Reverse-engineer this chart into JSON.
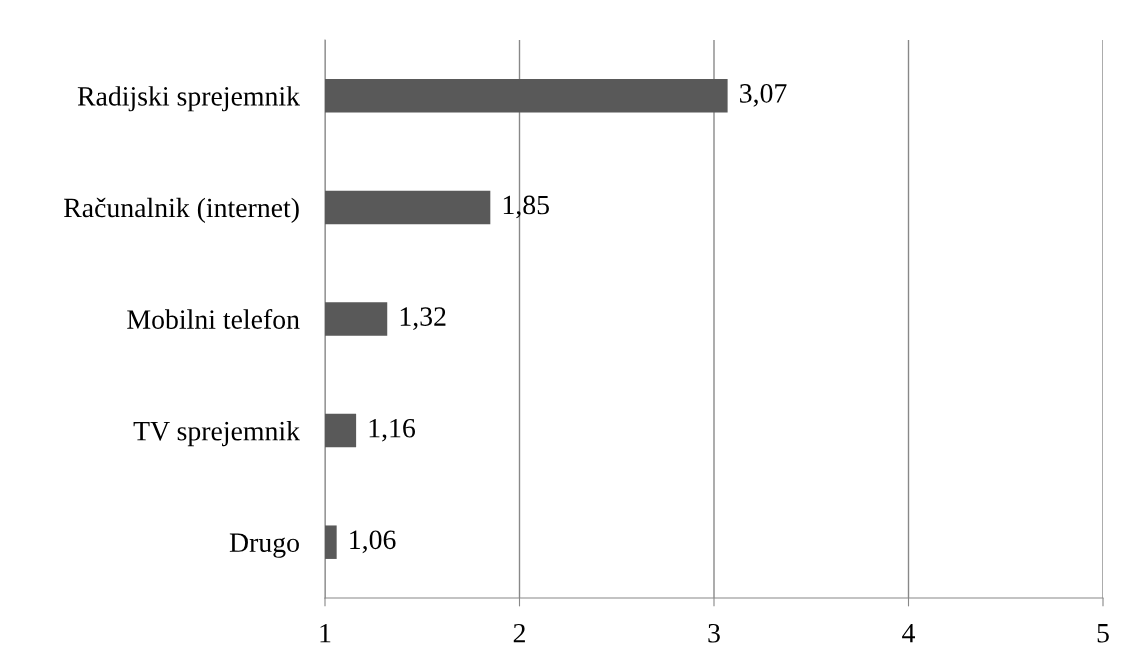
{
  "chart_data": {
    "type": "bar",
    "orientation": "horizontal",
    "categories": [
      "Radijski sprejemnik",
      "Računalnik (internet)",
      "Mobilni telefon",
      "TV sprejemnik",
      "Drugo"
    ],
    "values": [
      3.07,
      1.85,
      1.32,
      1.16,
      1.06
    ],
    "value_labels": [
      "3,07",
      "1,85",
      "1,32",
      "1,16",
      "1,06"
    ],
    "color": "#595959",
    "xlim": [
      1,
      5
    ],
    "xticks": [
      1,
      2,
      3,
      4,
      5
    ],
    "grid": "x"
  }
}
